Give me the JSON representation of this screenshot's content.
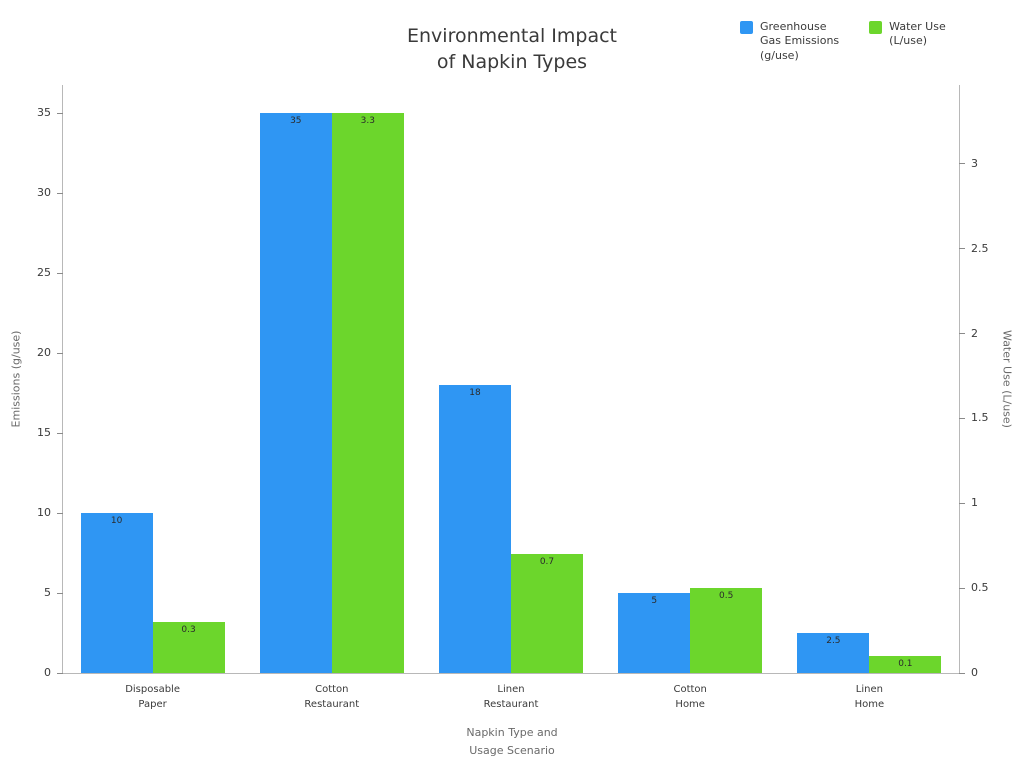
{
  "title": "Environmental Impact\nof Napkin Types",
  "legend": {
    "items": [
      {
        "label": "Greenhouse\nGas Emissions\n(g/use)",
        "color": "#2f96f3"
      },
      {
        "label": "Water Use\n(L/use)",
        "color": "#6cd62c"
      }
    ]
  },
  "chart_data": {
    "type": "bar",
    "title": "Environmental Impact of Napkin Types",
    "categories": [
      "Disposable\nPaper",
      "Cotton\nRestaurant",
      "Linen\nRestaurant",
      "Cotton\nHome",
      "Linen\nHome"
    ],
    "series": [
      {
        "name": "Greenhouse Gas Emissions (g/use)",
        "axis": "left",
        "color": "#2f96f3",
        "values": [
          10,
          35,
          18,
          5,
          2.5
        ],
        "labels": [
          "10",
          "35",
          "18",
          "5",
          "2.5"
        ]
      },
      {
        "name": "Water Use (L/use)",
        "axis": "right",
        "color": "#6cd62c",
        "values": [
          0.3,
          3.3,
          0.7,
          0.5,
          0.1
        ],
        "labels": [
          "0.3",
          "3.3",
          "0.7",
          "0.5",
          "0.1"
        ]
      }
    ],
    "xlabel": "Napkin Type and\nUsage Scenario",
    "left_axis": {
      "label": "Emissions (g/use)",
      "ticks": [
        0,
        5,
        10,
        15,
        20,
        25,
        30,
        35
      ],
      "max": 36.75
    },
    "right_axis": {
      "label": "Water Use (L/use)",
      "ticks": [
        0,
        0.5,
        1,
        1.5,
        2,
        2.5,
        3
      ],
      "max": 3.465
    },
    "grid": false,
    "legend_position": "top-right",
    "bar_labels": true
  }
}
